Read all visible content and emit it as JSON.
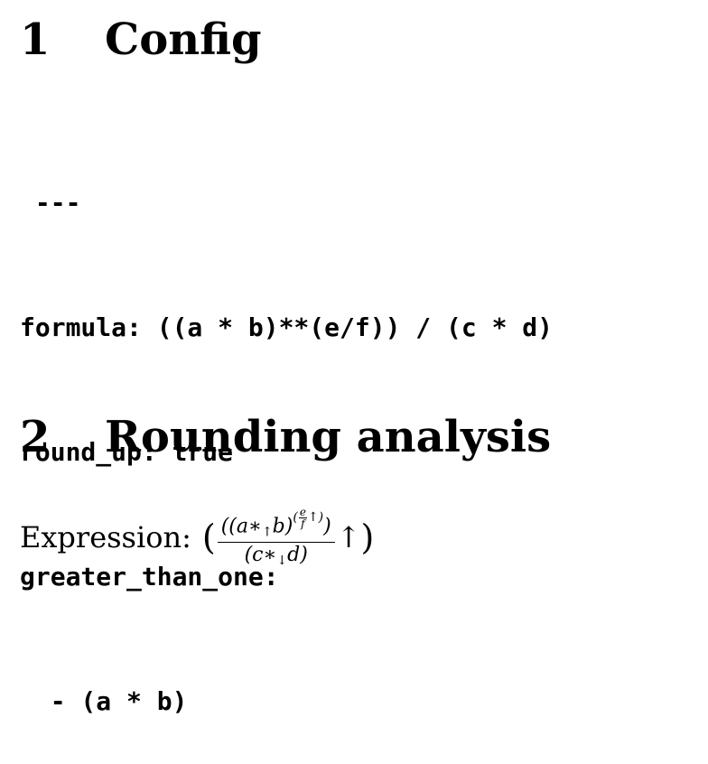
{
  "sections": [
    {
      "number": "1",
      "title": "Config"
    },
    {
      "number": "2",
      "title": "Rounding analysis"
    }
  ],
  "config_code": [
    " ---",
    "formula: ((a * b)**(e/f)) / (c * d)",
    "round_up: true",
    "greater_than_one:",
    "  - (a * b)"
  ],
  "expression": {
    "label": "Expression:",
    "open_paren": "(",
    "close_paren": ")",
    "numerator": {
      "prefix": "((a∗",
      "up_arrow": "↑",
      "b": "b)",
      "exp_open": "(",
      "exp_num": "e",
      "exp_den": "f",
      "exp_arrow": "↑",
      "exp_close": ")",
      "suffix": ")"
    },
    "denominator": {
      "prefix": "(c∗",
      "down_arrow": "↓",
      "suffix": "d)"
    },
    "result_arrow": "↑"
  }
}
